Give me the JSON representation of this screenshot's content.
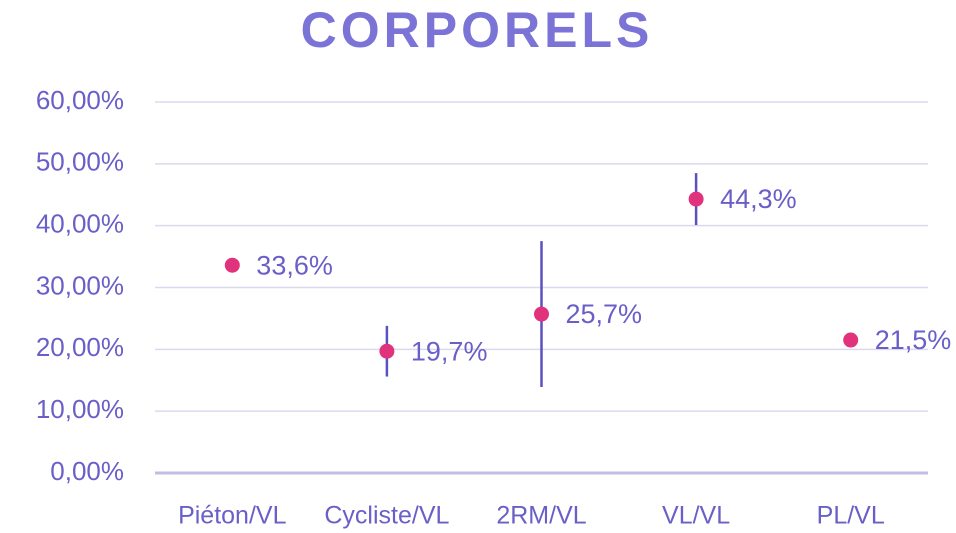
{
  "chart_data": {
    "type": "errorbar",
    "title": "CORPORELS",
    "categories": [
      "Piéton/VL",
      "Cycliste/VL",
      "2RM/VL",
      "VL/VL",
      "PL/VL"
    ],
    "values": [
      33.6,
      19.7,
      25.7,
      44.3,
      21.5
    ],
    "value_labels": [
      "33,6%",
      "19,7%",
      "25,7%",
      "44,3%",
      "21,5%"
    ],
    "errors": [
      0,
      4.1,
      11.8,
      4.2,
      0
    ],
    "color": "#e0337b",
    "error_color": "#5b50c0",
    "ylim": [
      0,
      60
    ],
    "yticks": [
      {
        "value": 0,
        "label": "0,00%"
      },
      {
        "value": 10,
        "label": "10,00%"
      },
      {
        "value": 20,
        "label": "20,00%"
      },
      {
        "value": 30,
        "label": "30,00%"
      },
      {
        "value": 40,
        "label": "40,00%"
      },
      {
        "value": 50,
        "label": "50,00%"
      },
      {
        "value": 60,
        "label": "60,00%"
      }
    ],
    "grid": true
  }
}
